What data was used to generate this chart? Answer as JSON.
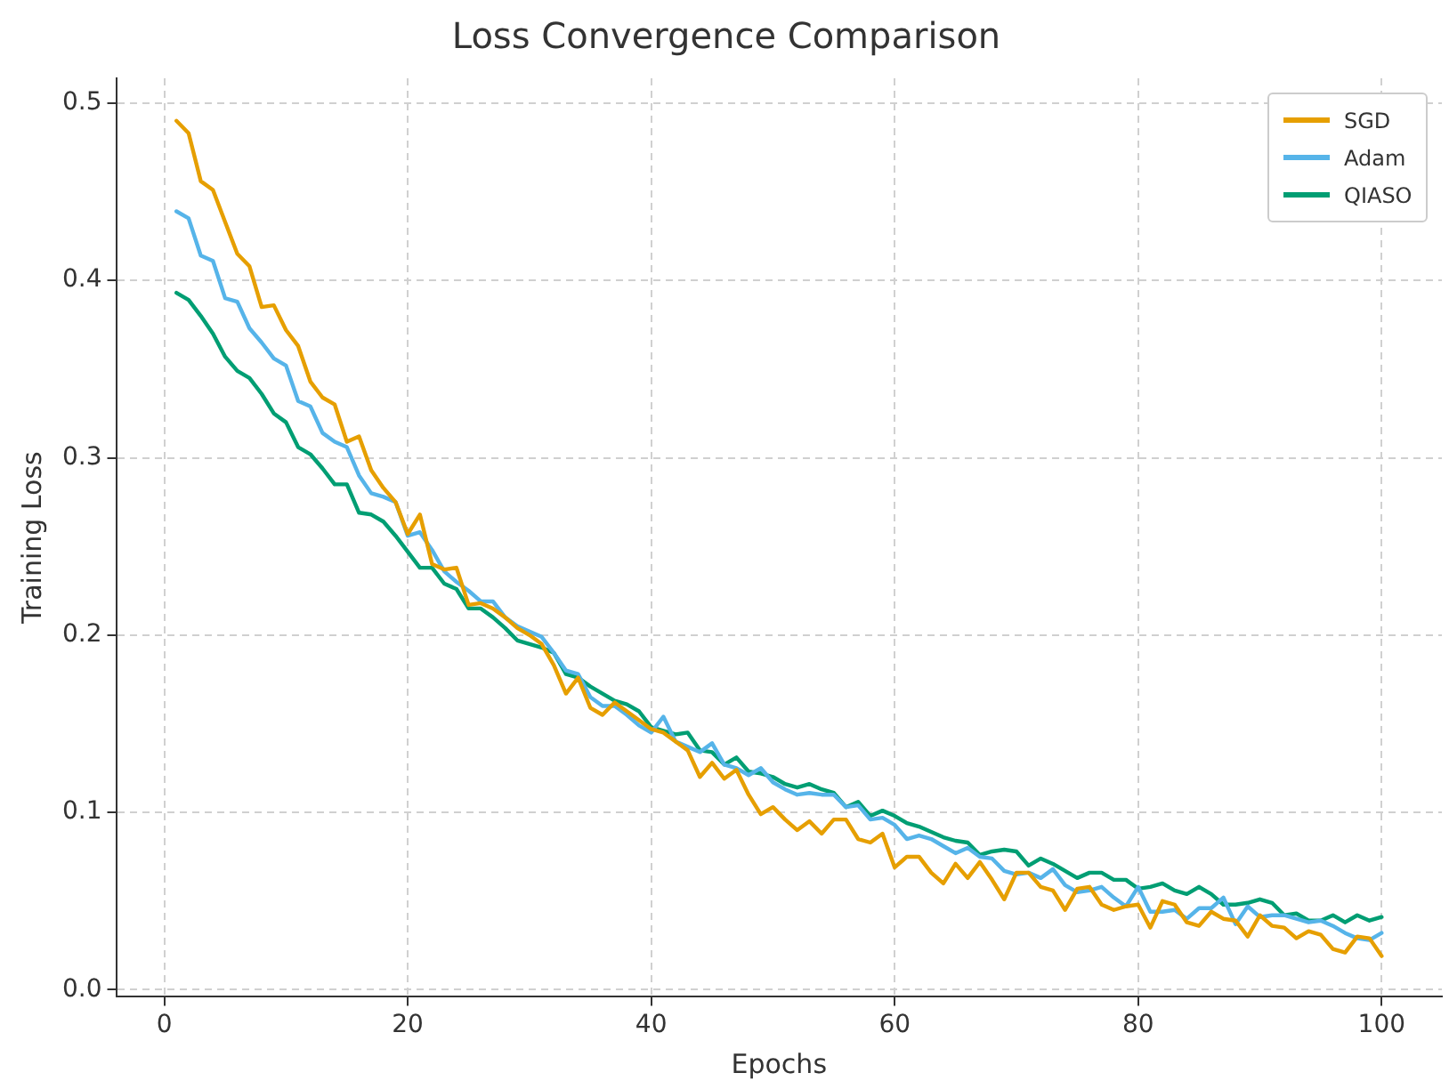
{
  "chart_data": {
    "type": "line",
    "title": "Loss Convergence Comparison",
    "xlabel": "Epochs",
    "ylabel": "Training Loss",
    "x": [
      1,
      2,
      3,
      4,
      5,
      6,
      7,
      8,
      9,
      10,
      11,
      12,
      13,
      14,
      15,
      16,
      17,
      18,
      19,
      20,
      21,
      22,
      23,
      24,
      25,
      26,
      27,
      28,
      29,
      30,
      31,
      32,
      33,
      34,
      35,
      36,
      37,
      38,
      39,
      40,
      41,
      42,
      43,
      44,
      45,
      46,
      47,
      48,
      49,
      50,
      51,
      52,
      53,
      54,
      55,
      56,
      57,
      58,
      59,
      60,
      61,
      62,
      63,
      64,
      65,
      66,
      67,
      68,
      69,
      70,
      71,
      72,
      73,
      74,
      75,
      76,
      77,
      78,
      79,
      80,
      81,
      82,
      83,
      84,
      85,
      86,
      87,
      88,
      89,
      90,
      91,
      92,
      93,
      94,
      95,
      96,
      97,
      98,
      99,
      100
    ],
    "series": [
      {
        "name": "SGD",
        "color": "#e69f00",
        "values": [
          0.49,
          0.483,
          0.456,
          0.451,
          0.433,
          0.415,
          0.408,
          0.385,
          0.386,
          0.372,
          0.363,
          0.343,
          0.334,
          0.33,
          0.309,
          0.312,
          0.293,
          0.283,
          0.275,
          0.257,
          0.268,
          0.24,
          0.237,
          0.238,
          0.217,
          0.218,
          0.215,
          0.21,
          0.204,
          0.2,
          0.195,
          0.183,
          0.167,
          0.176,
          0.159,
          0.155,
          0.162,
          0.157,
          0.152,
          0.147,
          0.145,
          0.14,
          0.135,
          0.12,
          0.128,
          0.119,
          0.124,
          0.11,
          0.099,
          0.103,
          0.096,
          0.09,
          0.095,
          0.088,
          0.096,
          0.096,
          0.085,
          0.083,
          0.088,
          0.069,
          0.075,
          0.075,
          0.066,
          0.06,
          0.071,
          0.063,
          0.072,
          0.062,
          0.051,
          0.066,
          0.066,
          0.058,
          0.056,
          0.045,
          0.057,
          0.058,
          0.048,
          0.045,
          0.047,
          0.048,
          0.035,
          0.05,
          0.048,
          0.038,
          0.036,
          0.044,
          0.04,
          0.039,
          0.03,
          0.042,
          0.036,
          0.035,
          0.029,
          0.033,
          0.031,
          0.023,
          0.021,
          0.03,
          0.029,
          0.019
        ]
      },
      {
        "name": "Adam",
        "color": "#56b4e9",
        "values": [
          0.439,
          0.435,
          0.414,
          0.411,
          0.39,
          0.388,
          0.373,
          0.365,
          0.356,
          0.352,
          0.332,
          0.329,
          0.314,
          0.309,
          0.306,
          0.29,
          0.28,
          0.278,
          0.275,
          0.256,
          0.258,
          0.248,
          0.236,
          0.23,
          0.225,
          0.219,
          0.219,
          0.21,
          0.205,
          0.202,
          0.199,
          0.19,
          0.18,
          0.178,
          0.165,
          0.16,
          0.16,
          0.155,
          0.149,
          0.145,
          0.154,
          0.14,
          0.137,
          0.134,
          0.139,
          0.127,
          0.125,
          0.121,
          0.125,
          0.117,
          0.113,
          0.11,
          0.111,
          0.11,
          0.11,
          0.103,
          0.104,
          0.096,
          0.097,
          0.093,
          0.085,
          0.087,
          0.085,
          0.081,
          0.077,
          0.08,
          0.075,
          0.074,
          0.067,
          0.065,
          0.066,
          0.063,
          0.068,
          0.059,
          0.055,
          0.056,
          0.058,
          0.052,
          0.047,
          0.058,
          0.044,
          0.044,
          0.045,
          0.04,
          0.046,
          0.046,
          0.052,
          0.037,
          0.047,
          0.041,
          0.042,
          0.042,
          0.04,
          0.038,
          0.039,
          0.036,
          0.032,
          0.029,
          0.028,
          0.032
        ]
      },
      {
        "name": "QIASO",
        "color": "#009e73",
        "values": [
          0.393,
          0.389,
          0.38,
          0.37,
          0.357,
          0.349,
          0.345,
          0.336,
          0.325,
          0.32,
          0.306,
          0.302,
          0.294,
          0.285,
          0.285,
          0.269,
          0.268,
          0.264,
          0.256,
          0.247,
          0.238,
          0.238,
          0.229,
          0.226,
          0.215,
          0.215,
          0.21,
          0.204,
          0.197,
          0.195,
          0.193,
          0.19,
          0.178,
          0.176,
          0.171,
          0.167,
          0.163,
          0.161,
          0.157,
          0.148,
          0.146,
          0.144,
          0.145,
          0.135,
          0.134,
          0.127,
          0.131,
          0.123,
          0.122,
          0.12,
          0.116,
          0.114,
          0.116,
          0.113,
          0.111,
          0.103,
          0.106,
          0.098,
          0.101,
          0.098,
          0.094,
          0.092,
          0.089,
          0.086,
          0.084,
          0.083,
          0.076,
          0.078,
          0.079,
          0.078,
          0.07,
          0.074,
          0.071,
          0.067,
          0.063,
          0.066,
          0.066,
          0.062,
          0.062,
          0.057,
          0.058,
          0.06,
          0.056,
          0.054,
          0.058,
          0.054,
          0.048,
          0.048,
          0.049,
          0.051,
          0.049,
          0.042,
          0.043,
          0.039,
          0.039,
          0.042,
          0.038,
          0.042,
          0.039,
          0.041
        ]
      }
    ],
    "xlim": [
      -3.95,
      104.95
    ],
    "xticks": [
      0,
      20,
      40,
      60,
      80,
      100
    ],
    "ylim": [
      -0.004,
      0.514
    ],
    "yticks": [
      {
        "value": 0,
        "label": "0.0"
      },
      0.1,
      0.2,
      0.3,
      0.4,
      0.5
    ],
    "grid": true,
    "legend": "top right",
    "marker": "none",
    "line_style": "solid"
  }
}
